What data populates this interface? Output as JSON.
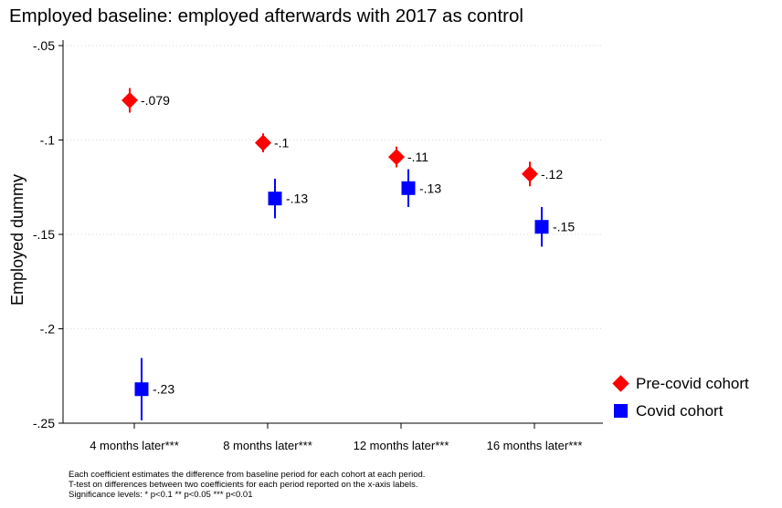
{
  "chart_data": {
    "type": "scatter",
    "title": "Employed baseline: employed afterwards with 2017 as control",
    "ylabel": "Employed dummy",
    "xlabel": "",
    "categories": [
      "4 months later***",
      "8 months later***",
      "12 months later***",
      "16 months later***"
    ],
    "ylim": [
      -0.25,
      -0.05
    ],
    "yticks": [
      -0.05,
      -0.1,
      -0.15,
      -0.2,
      -0.25
    ],
    "ytick_labels": [
      "-.05",
      "-.1",
      "-.15",
      "-.2",
      "-.25"
    ],
    "grid": true,
    "series": [
      {
        "name": "Pre-covid cohort",
        "marker": "diamond",
        "color": "#ff0000",
        "values": [
          -0.079,
          -0.1015,
          -0.109,
          -0.118
        ],
        "ci_low": [
          -0.0855,
          -0.1065,
          -0.1145,
          -0.1245
        ],
        "ci_high": [
          -0.0725,
          -0.0965,
          -0.1035,
          -0.1115
        ],
        "labels": [
          "-.079",
          "-.1",
          "-.11",
          "-.12"
        ]
      },
      {
        "name": "Covid cohort",
        "marker": "square",
        "color": "#0000ff",
        "values": [
          -0.232,
          -0.131,
          -0.1255,
          -0.146
        ],
        "ci_low": [
          -0.2485,
          -0.1415,
          -0.1355,
          -0.1565
        ],
        "ci_high": [
          -0.2155,
          -0.1205,
          -0.1155,
          -0.1355
        ],
        "labels": [
          "-.23",
          "-.13",
          "-.13",
          "-.15"
        ]
      }
    ],
    "legend_position": "bottom-right"
  },
  "notes": [
    "Each coefficient estimates the difference from baseline period for each cohort at each period.",
    "T-test on differences between two coefficients for each period reported on the x-axis labels.",
    "Significance levels: * p<0.1 ** p<0.05 *** p<0.01"
  ]
}
